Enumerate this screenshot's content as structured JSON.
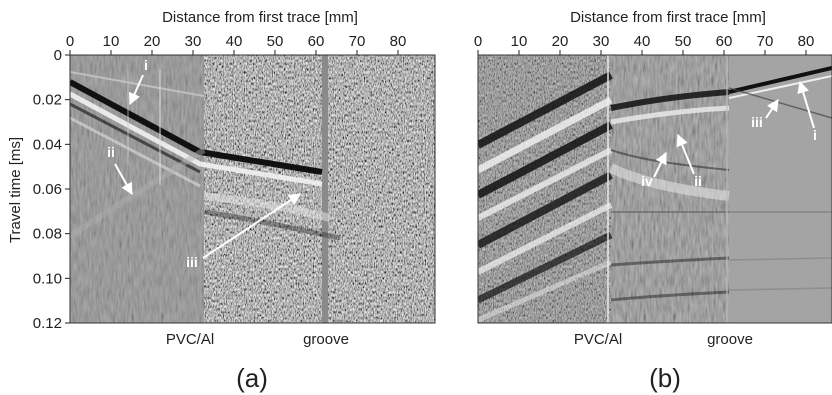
{
  "figure": {
    "x_title": "Distance from first trace [mm]",
    "y_title": "Travel time [ms]",
    "x_ticks": [
      "0",
      "10",
      "20",
      "30",
      "40",
      "50",
      "60",
      "70",
      "80"
    ],
    "y_ticks": [
      "0",
      "0.02",
      "0.04",
      "0.06",
      "0.08",
      "0.10",
      "0.12"
    ],
    "boundary_labels": [
      "PVC/Al",
      "groove"
    ]
  },
  "panels": [
    {
      "label": "(a)",
      "annotations": [
        "i",
        "ii",
        "iii"
      ]
    },
    {
      "label": "(b)",
      "annotations": [
        "iii",
        "i",
        "iv",
        "ii"
      ]
    }
  ]
}
